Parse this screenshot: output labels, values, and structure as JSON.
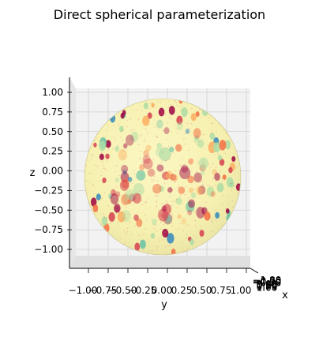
{
  "chart_data": {
    "type": "surface-3d",
    "title": "Direct spherical parameterization",
    "xlabel": "x",
    "ylabel": "y",
    "zlabel": "z",
    "xlim": [
      -1.0,
      1.0
    ],
    "ylim": [
      -1.0,
      1.0
    ],
    "zlim": [
      -1.0,
      1.0
    ],
    "y_ticks": [
      "−1.00",
      "−0.75",
      "−0.50",
      "−0.25",
      "0.00",
      "0.25",
      "0.50",
      "0.75",
      "1.00"
    ],
    "z_ticks": [
      "−1.00",
      "−0.75",
      "−0.50",
      "−0.25",
      "0.00",
      "0.25",
      "0.50",
      "0.75",
      "1.00"
    ],
    "x_ticks": [
      "−1.00",
      "−0.75",
      "−0.50",
      "−0.25",
      "0.00",
      "0.25",
      "0.50",
      "0.75",
      "1.00"
    ],
    "colormap": "Spectral",
    "grid": true,
    "pane_color": "#f2f2f2",
    "surface": "unit sphere"
  }
}
